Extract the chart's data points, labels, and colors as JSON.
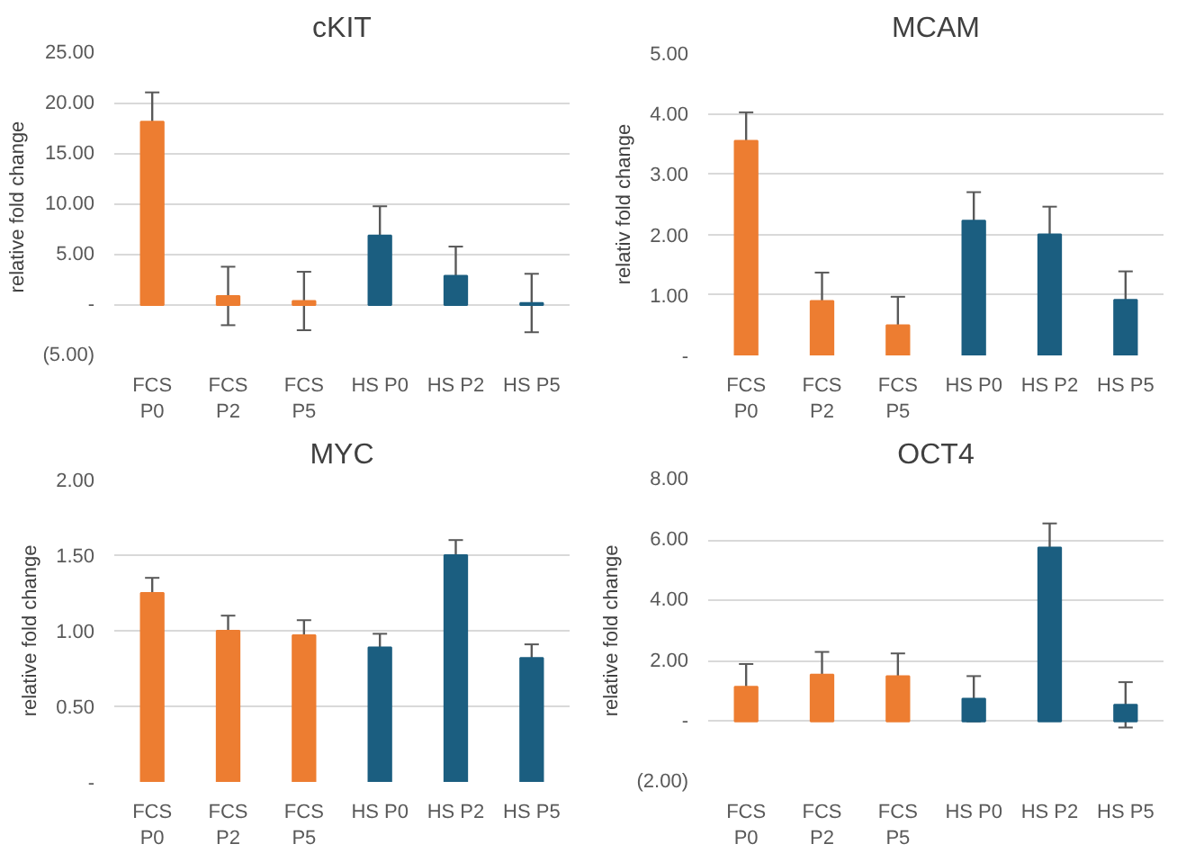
{
  "chart_data": [
    {
      "type": "bar",
      "title": "cKIT",
      "ylabel": "relative  fold change",
      "categories": [
        "FCS P0",
        "FCS P2",
        "FCS P5",
        "HS P0",
        "HS P2",
        "HS P5"
      ],
      "values": [
        18.2,
        0.9,
        0.4,
        6.9,
        2.9,
        0.2
      ],
      "errors": [
        2.9,
        2.9,
        2.9,
        2.9,
        2.9,
        2.9
      ],
      "colors": [
        "#ed7d31",
        "#ed7d31",
        "#ed7d31",
        "#1b5e80",
        "#1b5e80",
        "#1b5e80"
      ],
      "ylim": [
        -5,
        25
      ],
      "yticks": [
        {
          "value": -5,
          "label": "(5.00)"
        },
        {
          "value": 0,
          "label": "-"
        },
        {
          "value": 5,
          "label": "5.00"
        },
        {
          "value": 10,
          "label": "10.00"
        },
        {
          "value": 15,
          "label": "15.00"
        },
        {
          "value": 20,
          "label": "20.00"
        },
        {
          "value": 25,
          "label": "25.00"
        }
      ],
      "grid": "y"
    },
    {
      "type": "bar",
      "title": "MCAM",
      "ylabel": "relativ fold change",
      "categories": [
        "FCS P0",
        "FCS P2",
        "FCS P5",
        "HS P0",
        "HS P2",
        "HS P5"
      ],
      "values": [
        3.55,
        0.9,
        0.5,
        2.23,
        2.0,
        0.92
      ],
      "errors": [
        0.47,
        0.47,
        0.47,
        0.47,
        0.46,
        0.47
      ],
      "colors": [
        "#ed7d31",
        "#ed7d31",
        "#ed7d31",
        "#1b5e80",
        "#1b5e80",
        "#1b5e80"
      ],
      "ylim": [
        0,
        5
      ],
      "yticks": [
        {
          "value": 0,
          "label": "-"
        },
        {
          "value": 1,
          "label": "1.00"
        },
        {
          "value": 2,
          "label": "2.00"
        },
        {
          "value": 3,
          "label": "3.00"
        },
        {
          "value": 4,
          "label": "4.00"
        },
        {
          "value": 5,
          "label": "5.00"
        }
      ],
      "grid": "y"
    },
    {
      "type": "bar",
      "title": "MYC",
      "ylabel": "relative fold change",
      "categories": [
        "FCS P0",
        "FCS P2",
        "FCS P5",
        "HS P0",
        "HS P2",
        "HS P5"
      ],
      "values": [
        1.25,
        1.0,
        0.97,
        0.89,
        1.5,
        0.82
      ],
      "errors": [
        0.1,
        0.1,
        0.1,
        0.09,
        0.1,
        0.09
      ],
      "colors": [
        "#ed7d31",
        "#ed7d31",
        "#ed7d31",
        "#1b5e80",
        "#1b5e80",
        "#1b5e80"
      ],
      "ylim": [
        0,
        2
      ],
      "yticks": [
        {
          "value": 0,
          "label": "-"
        },
        {
          "value": 0.5,
          "label": "0.50"
        },
        {
          "value": 1,
          "label": "1.00"
        },
        {
          "value": 1.5,
          "label": "1.50"
        },
        {
          "value": 2,
          "label": "2.00"
        }
      ],
      "grid": "y"
    },
    {
      "type": "bar",
      "title": "OCT4",
      "ylabel": "relative fold change",
      "categories": [
        "FCS P0",
        "FCS P2",
        "FCS P5",
        "HS P0",
        "HS P2",
        "HS P5"
      ],
      "values": [
        1.15,
        1.55,
        1.5,
        0.75,
        5.75,
        0.55
      ],
      "errors": [
        0.75,
        0.75,
        0.75,
        0.75,
        0.8,
        0.75
      ],
      "colors": [
        "#ed7d31",
        "#ed7d31",
        "#ed7d31",
        "#1b5e80",
        "#1b5e80",
        "#1b5e80"
      ],
      "ylim": [
        -2,
        8
      ],
      "yticks": [
        {
          "value": -2,
          "label": "(2.00)"
        },
        {
          "value": 0,
          "label": "-"
        },
        {
          "value": 2,
          "label": "2.00"
        },
        {
          "value": 4,
          "label": "4.00"
        },
        {
          "value": 6,
          "label": "6.00"
        },
        {
          "value": 8,
          "label": "8.00"
        }
      ],
      "grid": "y"
    }
  ]
}
